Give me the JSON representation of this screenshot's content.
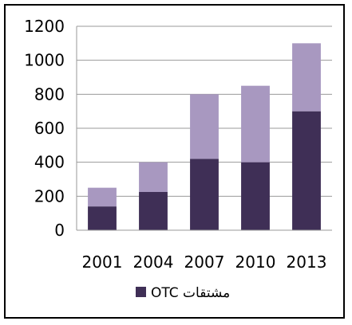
{
  "chart_data": {
    "type": "bar",
    "stacked": true,
    "categories": [
      "2001",
      "2004",
      "2007",
      "2010",
      "2013"
    ],
    "series": [
      {
        "name": "OTC مشتقات",
        "values": [
          140,
          225,
          420,
          400,
          700
        ],
        "color": "#3f2f56"
      },
      {
        "values": [
          110,
          175,
          380,
          450,
          400
        ],
        "color": "#a898c0"
      }
    ],
    "ylim": [
      0,
      1200
    ],
    "yticks": [
      0,
      200,
      400,
      600,
      800,
      1000,
      1200
    ],
    "grid": true,
    "legend_position": "bottom"
  }
}
